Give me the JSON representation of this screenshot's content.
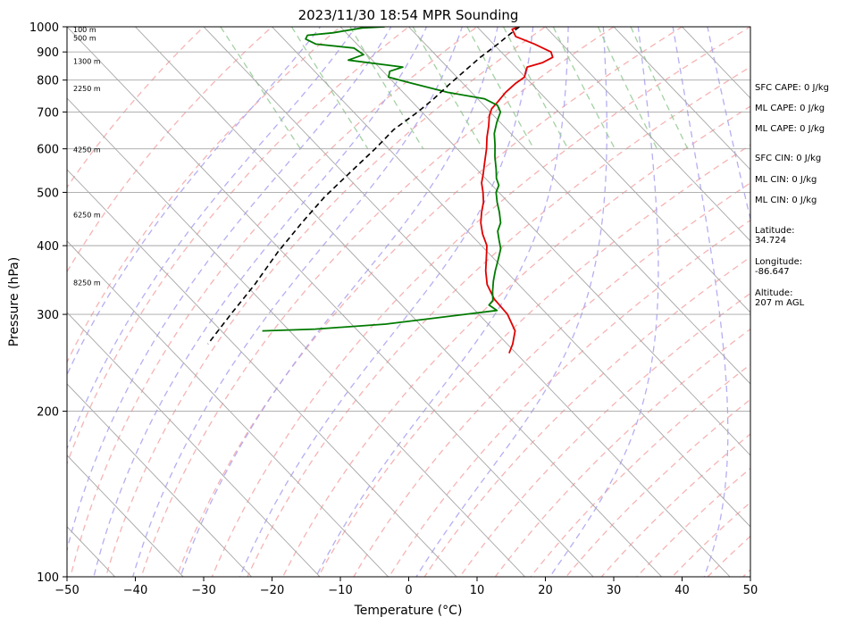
{
  "chart_data": {
    "type": "skew-t",
    "title": "2023/11/30 18:54 MPR Sounding",
    "xlabel": "Temperature (°C)",
    "ylabel": "Pressure (hPa)",
    "xlim": [
      -50,
      50
    ],
    "ylim": [
      1000,
      100
    ],
    "yscale": "log",
    "x_ticks": [
      "−50",
      "−40",
      "−30",
      "−20",
      "−10",
      "0",
      "10",
      "20",
      "30",
      "40",
      "50"
    ],
    "y_ticks": [
      "100",
      "200",
      "300",
      "400",
      "500",
      "600",
      "700",
      "800",
      "900",
      "1000"
    ],
    "grid": true,
    "colors": {
      "temperature": "#e00000",
      "dewpoint": "#007a00",
      "parcel": "#000000",
      "isotherm": "#a6a6a6",
      "dry_adiabat": "#f4a6a6",
      "moist_adiabat": "#a8a0f0",
      "mixing_ratio": "#99cc99"
    },
    "series": [
      {
        "name": "",
        "kind": "temperature",
        "points": [
          [
            16.2,
            1000
          ],
          [
            14.8,
            990
          ],
          [
            14.3,
            960
          ],
          [
            16.0,
            930
          ],
          [
            17.3,
            900
          ],
          [
            16.8,
            880
          ],
          [
            14.5,
            860
          ],
          [
            11.7,
            845
          ],
          [
            10.9,
            830
          ],
          [
            9.9,
            810
          ],
          [
            7.8,
            790
          ],
          [
            5.0,
            760
          ],
          [
            2.5,
            730
          ],
          [
            0.7,
            710
          ],
          [
            -0.6,
            690
          ],
          [
            -2.2,
            660
          ],
          [
            -4.0,
            630
          ],
          [
            -5.7,
            600
          ],
          [
            -8.0,
            565
          ],
          [
            -9.7,
            540
          ],
          [
            -11.2,
            520
          ],
          [
            -12.3,
            500
          ],
          [
            -13.6,
            480
          ],
          [
            -15.3,
            460
          ],
          [
            -16.9,
            440
          ],
          [
            -18.2,
            420
          ],
          [
            -19.2,
            400
          ],
          [
            -21.0,
            380
          ],
          [
            -22.9,
            360
          ],
          [
            -24.6,
            340
          ],
          [
            -25.6,
            320
          ],
          [
            -25.8,
            300
          ],
          [
            -27.0,
            280
          ],
          [
            -29.2,
            265
          ],
          [
            -31.0,
            255
          ]
        ]
      },
      {
        "name": "",
        "kind": "dewpoint",
        "points": [
          [
            -3.5,
            1000
          ],
          [
            -7.0,
            995
          ],
          [
            -12.0,
            975
          ],
          [
            -16.0,
            965
          ],
          [
            -16.8,
            950
          ],
          [
            -16.0,
            930
          ],
          [
            -11.0,
            915
          ],
          [
            -10.5,
            890
          ],
          [
            -13.5,
            870
          ],
          [
            -6.5,
            845
          ],
          [
            -9.0,
            830
          ],
          [
            -10.0,
            810
          ],
          [
            -7.5,
            790
          ],
          [
            -3.5,
            760
          ],
          [
            1.0,
            740
          ],
          [
            2.0,
            720
          ],
          [
            1.5,
            700
          ],
          [
            -0.5,
            670
          ],
          [
            -2.4,
            640
          ],
          [
            -3.9,
            610
          ],
          [
            -5.6,
            580
          ],
          [
            -7.2,
            550
          ],
          [
            -8.4,
            530
          ],
          [
            -9.0,
            515
          ],
          [
            -10.4,
            500
          ],
          [
            -11.6,
            480
          ],
          [
            -12.7,
            460
          ],
          [
            -14.0,
            440
          ],
          [
            -15.6,
            425
          ],
          [
            -16.6,
            410
          ],
          [
            -17.6,
            395
          ],
          [
            -19.2,
            380
          ],
          [
            -21.5,
            360
          ],
          [
            -23.2,
            345
          ],
          [
            -24.8,
            330
          ],
          [
            -26.0,
            318
          ],
          [
            -27.2,
            312
          ],
          [
            -26.8,
            305
          ],
          [
            -45,
            288
          ],
          [
            -56,
            282
          ],
          [
            -64,
            280
          ]
        ]
      },
      {
        "name": "",
        "kind": "parcel",
        "points": [
          [
            16.2,
            1000
          ],
          [
            13.8,
            970
          ],
          [
            10.6,
            930
          ],
          [
            6.2,
            880
          ],
          [
            1.9,
            830
          ],
          [
            -2.2,
            785
          ],
          [
            -6.4,
            740
          ],
          [
            -10.6,
            700
          ],
          [
            -16.6,
            650
          ],
          [
            -22.0,
            600
          ],
          [
            -29.4,
            540
          ],
          [
            -36.2,
            490
          ],
          [
            -43.1,
            440
          ],
          [
            -50.6,
            390
          ],
          [
            -58.6,
            340
          ],
          [
            -66.3,
            300
          ],
          [
            -73.8,
            265
          ]
        ]
      }
    ],
    "height_labels": [
      {
        "label": "100 m",
        "p": 988
      },
      {
        "label": "500 m",
        "p": 955
      },
      {
        "label": "1300 m",
        "p": 866
      },
      {
        "label": "2250 m",
        "p": 773
      },
      {
        "label": "4250 m",
        "p": 598
      },
      {
        "label": "6250 m",
        "p": 455
      },
      {
        "label": "8250 m",
        "p": 343
      }
    ],
    "side_info": [
      "SFC CAPE: 0 J/kg",
      "ML CAPE: 0 J/kg",
      "ML CAPE: 0 J/kg",
      "SFC CIN: 0 J/kg",
      "ML CIN: 0 J/kg",
      "ML CIN: 0 J/kg",
      "Latitude:\n34.724",
      "Longitude:\n-86.647",
      "Altitude:\n207 m AGL"
    ]
  }
}
